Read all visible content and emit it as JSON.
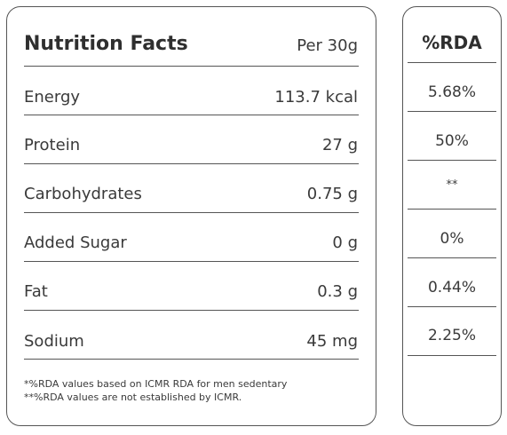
{
  "panel": {
    "title": "Nutrition Facts",
    "serving": "Per 30g",
    "rows": [
      {
        "label": "Energy",
        "value": "113.7 kcal",
        "rda": "5.68%"
      },
      {
        "label": "Protein",
        "value": "27 g",
        "rda": "50%"
      },
      {
        "label": "Carbohydrates",
        "value": "0.75 g",
        "rda": "**"
      },
      {
        "label": "Added Sugar",
        "value": "0 g",
        "rda": "0%"
      },
      {
        "label": "Fat",
        "value": "0.3 g",
        "rda": "0.44%"
      },
      {
        "label": "Sodium",
        "value": "45 mg",
        "rda": "2.25%"
      }
    ],
    "footnotes": [
      "*%RDA values based on ICMR RDA for men sedentary",
      "**%RDA values are not established by ICMR."
    ]
  },
  "rda": {
    "header": "%RDA"
  }
}
